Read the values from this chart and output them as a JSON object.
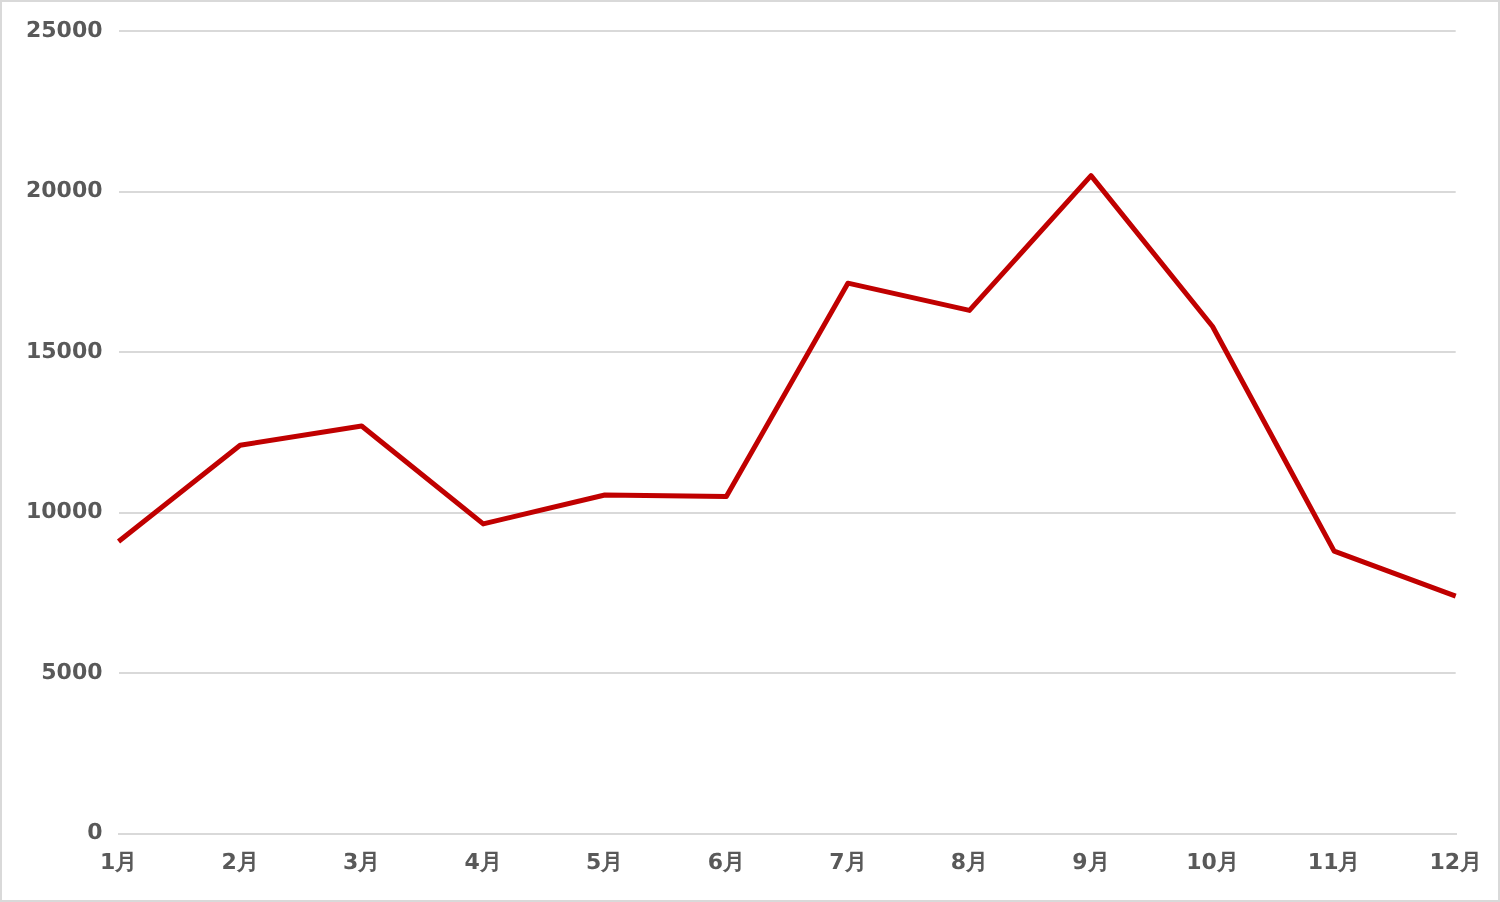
{
  "chart_data": {
    "type": "line",
    "categories": [
      "1月",
      "2月",
      "3月",
      "4月",
      "5月",
      "6月",
      "7月",
      "8月",
      "9月",
      "10月",
      "11月",
      "12月"
    ],
    "series": [
      {
        "color": "#c00000",
        "values": [
          9100,
          12100,
          12700,
          9650,
          10550,
          10500,
          17150,
          16300,
          20500,
          15800,
          8800,
          7400
        ]
      }
    ],
    "ylim": [
      0,
      25000
    ],
    "yticks": [
      0,
      5000,
      10000,
      15000,
      20000,
      25000
    ],
    "grid": "y",
    "legend": false,
    "marker": "none",
    "line_style": "solid"
  }
}
